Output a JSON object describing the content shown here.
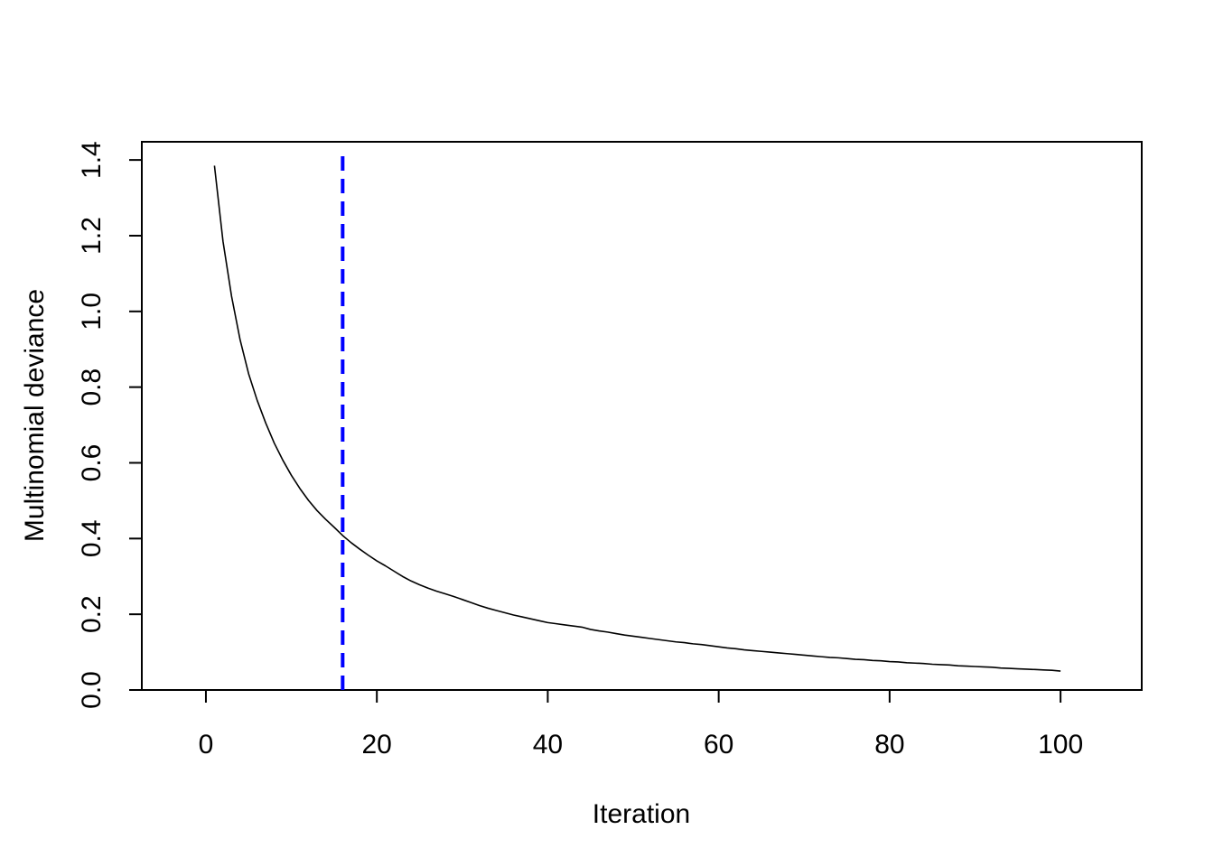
{
  "chart_data": {
    "type": "line",
    "title": "",
    "xlabel": "Iteration",
    "ylabel": "Multinomial deviance",
    "xlim": [
      -7.5,
      109.5
    ],
    "ylim": [
      0.0,
      1.448
    ],
    "x_ticks": [
      0,
      20,
      40,
      60,
      80,
      100
    ],
    "x_tick_labels": [
      "0",
      "20",
      "40",
      "60",
      "80",
      "100"
    ],
    "y_ticks": [
      0.0,
      0.2,
      0.4,
      0.6,
      0.8,
      1.0,
      1.2,
      1.4
    ],
    "y_tick_labels": [
      "0.0",
      "0.2",
      "0.4",
      "0.6",
      "0.8",
      "1.0",
      "1.2",
      "1.4"
    ],
    "grid": false,
    "colors": {
      "line": "#000000",
      "vline": "#0000ff"
    },
    "series": [
      {
        "x": [
          1,
          2,
          3,
          4,
          5,
          6,
          7,
          8,
          9,
          10,
          11,
          12,
          13,
          14,
          15,
          16,
          17,
          18,
          19,
          20,
          21,
          22,
          23,
          24,
          25,
          26,
          27,
          28,
          29,
          30,
          31,
          32,
          33,
          34,
          35,
          36,
          37,
          38,
          39,
          40,
          41,
          42,
          43,
          44,
          45,
          46,
          47,
          48,
          49,
          50,
          51,
          52,
          53,
          54,
          55,
          56,
          57,
          58,
          59,
          60,
          61,
          62,
          63,
          64,
          65,
          66,
          67,
          68,
          69,
          70,
          71,
          72,
          73,
          74,
          75,
          76,
          77,
          78,
          79,
          80,
          81,
          82,
          83,
          84,
          85,
          86,
          87,
          88,
          89,
          90,
          91,
          92,
          93,
          94,
          95,
          96,
          97,
          98,
          99,
          100
        ],
        "values": [
          1.385,
          1.185,
          1.04,
          0.925,
          0.835,
          0.765,
          0.705,
          0.652,
          0.607,
          0.567,
          0.532,
          0.501,
          0.474,
          0.451,
          0.43,
          0.408,
          0.389,
          0.372,
          0.356,
          0.341,
          0.328,
          0.314,
          0.3,
          0.288,
          0.278,
          0.269,
          0.261,
          0.254,
          0.247,
          0.239,
          0.231,
          0.223,
          0.216,
          0.21,
          0.204,
          0.198,
          0.193,
          0.188,
          0.183,
          0.178,
          0.175,
          0.172,
          0.169,
          0.166,
          0.16,
          0.156,
          0.153,
          0.149,
          0.145,
          0.142,
          0.139,
          0.136,
          0.133,
          0.13,
          0.127,
          0.125,
          0.122,
          0.12,
          0.117,
          0.114,
          0.111,
          0.109,
          0.106,
          0.104,
          0.102,
          0.1,
          0.098,
          0.096,
          0.094,
          0.092,
          0.09,
          0.088,
          0.086,
          0.085,
          0.083,
          0.081,
          0.08,
          0.078,
          0.077,
          0.075,
          0.074,
          0.072,
          0.071,
          0.07,
          0.068,
          0.067,
          0.066,
          0.064,
          0.063,
          0.062,
          0.061,
          0.06,
          0.058,
          0.057,
          0.056,
          0.055,
          0.054,
          0.053,
          0.052,
          0.05
        ]
      }
    ],
    "vline": {
      "x": 16,
      "style": "dashed"
    }
  }
}
